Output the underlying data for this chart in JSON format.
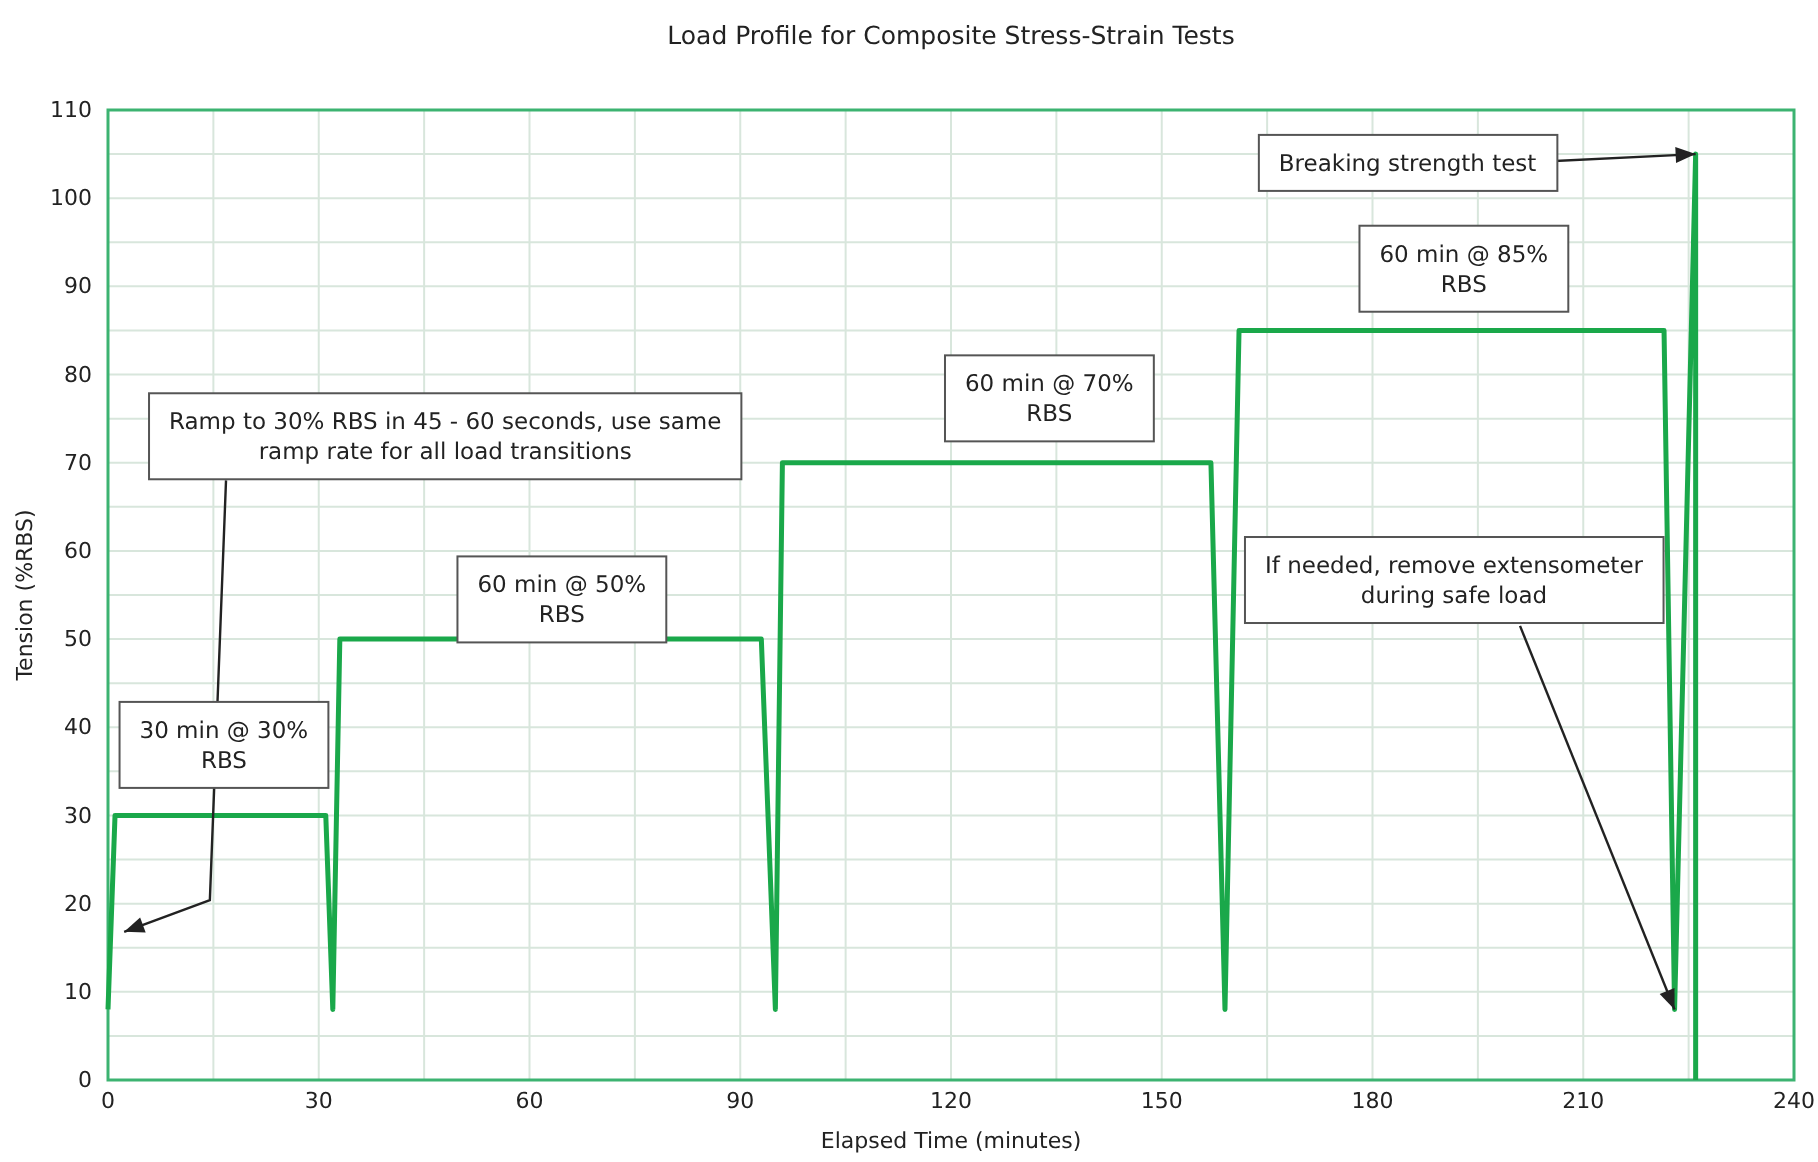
{
  "chart_data": {
    "type": "line",
    "title": "Load Profile for Composite Stress-Strain Tests",
    "xlabel": "Elapsed Time (minutes)",
    "ylabel": "Tension (%RBS)",
    "x": [
      0,
      1,
      31,
      32,
      33,
      93,
      95,
      96,
      157,
      159,
      161,
      221.5,
      223,
      226,
      226
    ],
    "series": [
      {
        "color": "#1aa84a",
        "values": [
          8,
          30,
          30,
          8,
          50,
          50,
          8,
          70,
          70,
          8,
          85,
          85,
          8,
          105,
          0
        ]
      }
    ],
    "xlim": [
      0,
      240
    ],
    "ylim": [
      0,
      110
    ],
    "xticks": [
      0,
      {
        "value": 15,
        "label": null
      },
      30,
      {
        "value": 45,
        "label": null
      },
      60,
      {
        "value": 75,
        "label": null
      },
      90,
      {
        "value": 105,
        "label": null
      },
      120,
      {
        "value": 135,
        "label": null
      },
      150,
      {
        "value": 165,
        "label": null
      },
      180,
      {
        "value": 195,
        "label": null
      },
      210,
      {
        "value": 225,
        "label": null
      },
      240
    ],
    "yticks": [
      0,
      {
        "value": 5,
        "label": null
      },
      10,
      {
        "value": 15,
        "label": null
      },
      20,
      {
        "value": 25,
        "label": null
      },
      30,
      {
        "value": 35,
        "label": null
      },
      40,
      {
        "value": 45,
        "label": null
      },
      50,
      {
        "value": 55,
        "label": null
      },
      60,
      {
        "value": 65,
        "label": null
      },
      70,
      {
        "value": 75,
        "label": null
      },
      80,
      {
        "value": 85,
        "label": null
      },
      90,
      {
        "value": 95,
        "label": null
      },
      100,
      {
        "value": 105,
        "label": null
      },
      110
    ],
    "grid": true,
    "marker": "none",
    "line_style": "solid",
    "annotations": [
      "30 min @ 30%\nRBS",
      "60 min @ 50%\nRBS",
      "60 min @ 70%\nRBS",
      "60 min @ 85%\nRBS",
      {
        "text": "Breaking strength test",
        "x": 226,
        "y": 105
      },
      "Ramp to 30% RBS in 45 - 60 seconds, use same\nramp rate for all load transitions",
      {
        "text": "If needed, remove extensometer\nduring safe load",
        "x": 223,
        "y": 8
      }
    ]
  }
}
